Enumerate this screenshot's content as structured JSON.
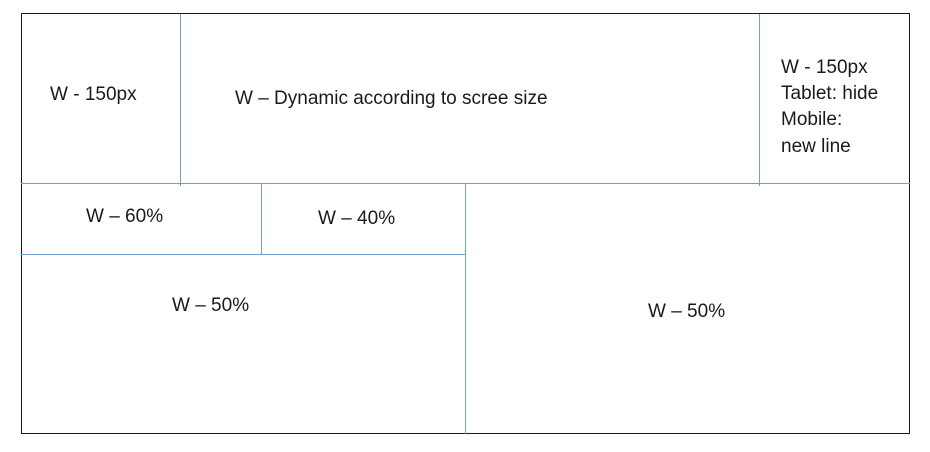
{
  "diagram": {
    "line_color": "#6fa0cf",
    "border_color": "#1a1a1a",
    "top_row": {
      "left_cell": "W - 150px",
      "center_cell": "W – Dynamic according to scree size",
      "right_cell": {
        "line1": "W - 150px",
        "line2": "Tablet: hide",
        "line3": "Mobile:",
        "line4": "new line"
      }
    },
    "bottom_left": {
      "sub_left": "W – 60%",
      "sub_right": "W – 40%",
      "lower": "W – 50%"
    },
    "bottom_right": "W – 50%"
  }
}
